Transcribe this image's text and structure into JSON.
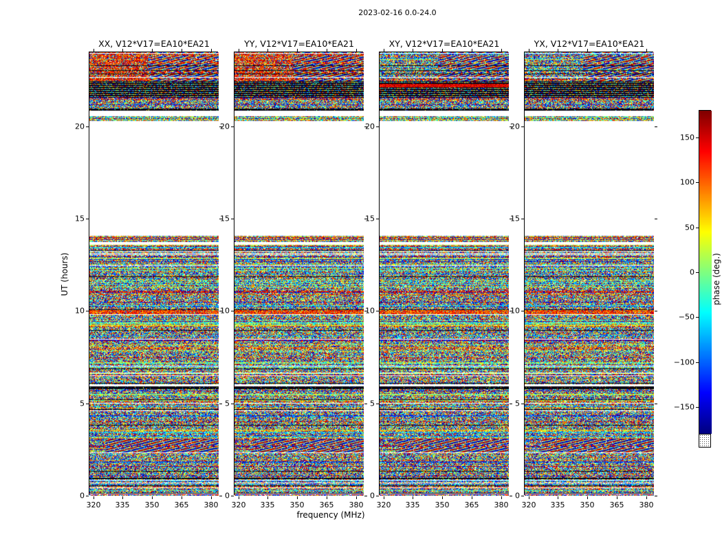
{
  "chart_data": {
    "type": "heatmap",
    "title": "2023-02-16 0.0-24.0",
    "panels": [
      {
        "pol": "XX",
        "label": "XX, V12*V17=EA10*EA21"
      },
      {
        "pol": "YY",
        "label": "YY, V12*V17=EA10*EA21"
      },
      {
        "pol": "XY",
        "label": "XY, V12*V17=EA10*EA21"
      },
      {
        "pol": "YX",
        "label": "YX, V12*V17=EA10*EA21"
      }
    ],
    "x_axis": {
      "label": "frequency (MHz)",
      "range": [
        318,
        384
      ],
      "ticks": [
        320,
        335,
        350,
        365,
        380
      ]
    },
    "y_axis": {
      "label": "UT (hours)",
      "range": [
        0,
        24
      ],
      "ticks": [
        0,
        5,
        10,
        15,
        20
      ]
    },
    "colorbar": {
      "label": "phase (deg.)",
      "range": [
        -180,
        180
      ],
      "ticks": [
        150,
        100,
        50,
        0,
        -50,
        -100,
        -150
      ],
      "colormap": "jet"
    },
    "time_segments": [
      {
        "from": 24.0,
        "to": 22.45,
        "kind": "noise",
        "moire": true,
        "moire_x0": 0.45,
        "warm_panels": [
          0,
          1
        ]
      },
      {
        "from": 22.45,
        "to": 21.55,
        "kind": "stripes",
        "warm_panels": [
          2
        ]
      },
      {
        "from": 21.55,
        "to": 20.95,
        "kind": "noise"
      },
      {
        "from": 20.95,
        "to": 20.82,
        "kind": "dark"
      },
      {
        "from": 20.82,
        "to": 20.55,
        "kind": "blank"
      },
      {
        "from": 20.55,
        "to": 20.28,
        "kind": "noise"
      },
      {
        "from": 20.28,
        "to": 14.05,
        "kind": "blank"
      },
      {
        "from": 14.05,
        "to": 13.72,
        "kind": "noise"
      },
      {
        "from": 13.72,
        "to": 13.58,
        "kind": "blank"
      },
      {
        "from": 13.58,
        "to": 10.05,
        "kind": "noise"
      },
      {
        "from": 10.05,
        "to": 9.82,
        "kind": "warm"
      },
      {
        "from": 9.82,
        "to": 5.92,
        "kind": "noise"
      },
      {
        "from": 5.92,
        "to": 5.78,
        "kind": "dark"
      },
      {
        "from": 5.78,
        "to": 3.05,
        "kind": "noise"
      },
      {
        "from": 3.05,
        "to": 2.35,
        "kind": "noise",
        "moire": true,
        "moire_x0": 0.12
      },
      {
        "from": 2.35,
        "to": 0.0,
        "kind": "noise"
      }
    ]
  }
}
